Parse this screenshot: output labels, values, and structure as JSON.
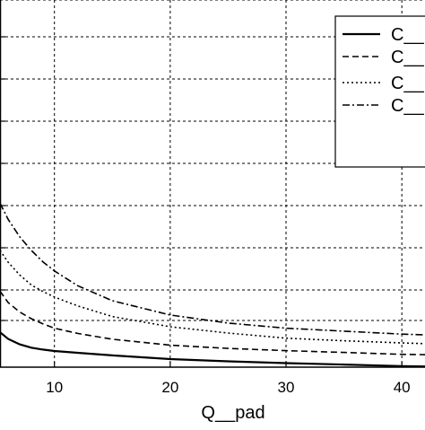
{
  "chart_data": {
    "type": "line",
    "title": "",
    "xlabel": "Q__pad",
    "ylabel": "",
    "xlim": [
      5.3,
      42
    ],
    "ylim": [
      0,
      1
    ],
    "x_ticks": [
      10,
      20,
      30,
      40
    ],
    "x_tick_labels": [
      "10",
      "20",
      "30",
      "40"
    ],
    "grid": true,
    "legend_position": "top-right",
    "colors": {
      "line": "#000000",
      "grid": "#000000",
      "background": "#ffffff"
    },
    "series": [
      {
        "name": "C__",
        "style": "solid",
        "x": [
          5.3,
          6,
          7,
          8,
          9,
          10,
          12,
          15,
          20,
          25,
          30,
          35,
          40,
          42
        ],
        "y": [
          0.095,
          0.077,
          0.062,
          0.053,
          0.048,
          0.044,
          0.039,
          0.032,
          0.022,
          0.016,
          0.011,
          0.007,
          0.003,
          0.002
        ]
      },
      {
        "name": "C__",
        "style": "dashed",
        "x": [
          5.3,
          6,
          7,
          8,
          9,
          10,
          12,
          15,
          20,
          25,
          30,
          35,
          40,
          42
        ],
        "y": [
          0.207,
          0.176,
          0.15,
          0.132,
          0.118,
          0.106,
          0.092,
          0.076,
          0.06,
          0.051,
          0.045,
          0.04,
          0.035,
          0.034
        ]
      },
      {
        "name": "C__",
        "style": "dotted",
        "x": [
          5.3,
          6,
          7,
          8,
          9,
          10,
          12,
          15,
          20,
          25,
          30,
          35,
          40,
          42
        ],
        "y": [
          0.318,
          0.286,
          0.251,
          0.224,
          0.206,
          0.191,
          0.167,
          0.138,
          0.11,
          0.093,
          0.079,
          0.072,
          0.066,
          0.064
        ]
      },
      {
        "name": "C__",
        "style": "dashdot",
        "x": [
          5.3,
          6,
          7,
          8,
          9,
          10,
          12,
          15,
          20,
          25,
          30,
          35,
          40,
          42
        ],
        "y": [
          0.447,
          0.403,
          0.355,
          0.318,
          0.287,
          0.262,
          0.222,
          0.181,
          0.142,
          0.12,
          0.106,
          0.098,
          0.09,
          0.088
        ]
      }
    ]
  }
}
